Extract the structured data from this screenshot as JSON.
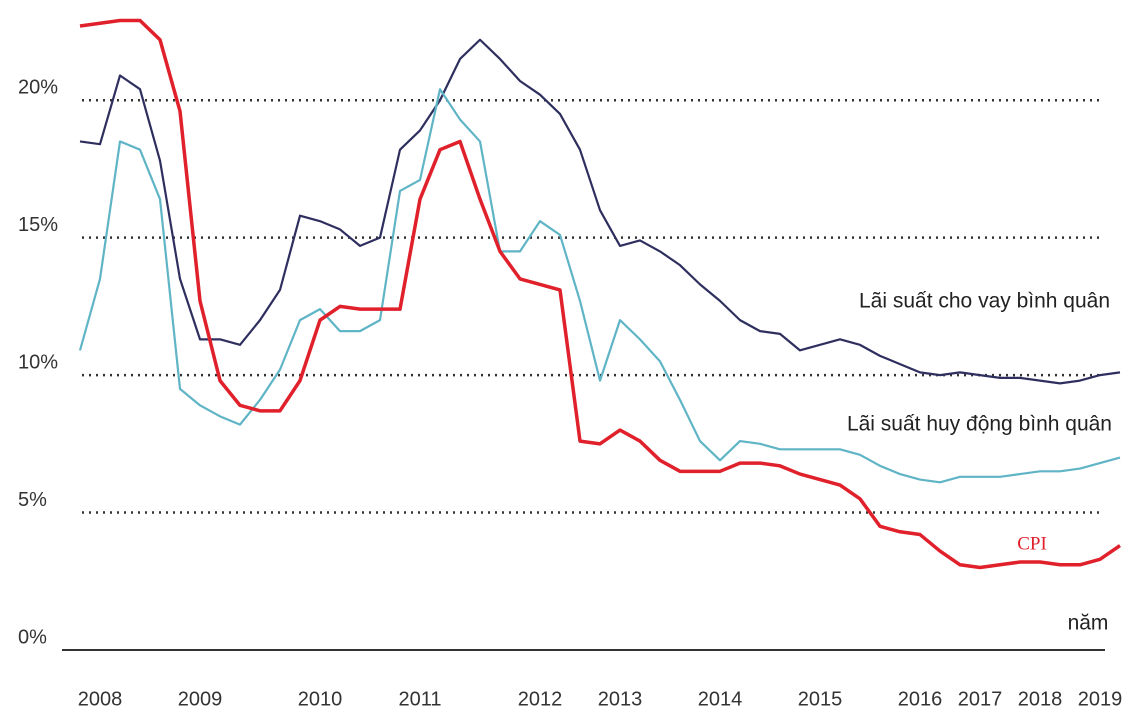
{
  "chart_data": {
    "type": "line",
    "x_label": "năm",
    "categories": [
      null,
      "2008",
      null,
      null,
      null,
      null,
      "2009",
      null,
      null,
      null,
      null,
      null,
      "2010",
      null,
      null,
      null,
      null,
      "2011",
      null,
      null,
      null,
      null,
      null,
      "2012",
      null,
      null,
      null,
      "2013",
      null,
      null,
      null,
      null,
      "2014",
      null,
      null,
      null,
      null,
      "2015",
      null,
      null,
      null,
      null,
      "2016",
      null,
      null,
      "2017",
      null,
      null,
      "2018",
      null,
      null,
      "2019",
      null
    ],
    "series": [
      {
        "name": "Lãi suất cho vay bình quân",
        "color": "#2e2f5e",
        "values": [
          18.5,
          18.4,
          20.9,
          20.4,
          17.8,
          13.5,
          11.3,
          11.3,
          11.1,
          12,
          13.1,
          15.8,
          15.6,
          15.3,
          14.7,
          15.0,
          18.2,
          18.9,
          20,
          21.5,
          22.2,
          21.5,
          20.7,
          20.2,
          19.5,
          18.2,
          16,
          14.7,
          14.9,
          14.5,
          14,
          13.3,
          12.7,
          12,
          11.6,
          11.5,
          10.9,
          11.1,
          11.3,
          11.1,
          10.7,
          10.4,
          10.1,
          10,
          10.1,
          10,
          9.9,
          9.9,
          9.8,
          9.7,
          9.8,
          10,
          10.1
        ]
      },
      {
        "name": "Lãi suất huy động bình quân",
        "color": "#5fb4c6",
        "values": [
          10.9,
          13.5,
          18.5,
          18.2,
          16.4,
          9.5,
          8.9,
          8.5,
          8.2,
          9.1,
          10.2,
          12,
          12.4,
          11.6,
          11.6,
          12,
          16.7,
          17.1,
          20.4,
          19.3,
          18.5,
          14.5,
          14.5,
          15.6,
          15.1,
          12.7,
          9.8,
          12,
          11.3,
          10.5,
          9.1,
          7.6,
          6.9,
          7.6,
          7.5,
          7.3,
          7.3,
          7.3,
          7.3,
          7.1,
          6.7,
          6.4,
          6.2,
          6.1,
          6.3,
          6.3,
          6.3,
          6.4,
          6.5,
          6.5,
          6.6,
          6.8,
          7.0
        ]
      },
      {
        "name": "CPI",
        "color": "#e0202a",
        "values": [
          22.7,
          22.8,
          22.9,
          22.9,
          22.2,
          19.6,
          12.7,
          9.8,
          8.9,
          8.7,
          8.7,
          9.8,
          12,
          12.5,
          12.4,
          12.4,
          12.4,
          16.4,
          18.2,
          18.5,
          16.4,
          14.5,
          13.5,
          13.3,
          13.1,
          7.6,
          7.5,
          8,
          7.6,
          6.9,
          6.5,
          6.5,
          6.5,
          6.8,
          6.8,
          6.7,
          6.4,
          6.2,
          6,
          5.5,
          4.5,
          4.3,
          4.2,
          3.6,
          3.1,
          3.0,
          3.1,
          3.2,
          3.2,
          3.1,
          3.1,
          3.3,
          3.8
        ]
      }
    ],
    "ylim": [
      0,
      23.5
    ],
    "yticks": [
      {
        "value": 0,
        "label": "0%"
      },
      {
        "value": 5,
        "label": "5%"
      },
      {
        "value": 10,
        "label": "10%"
      },
      {
        "value": 15,
        "label": "15%"
      },
      {
        "value": 20,
        "label": "20%"
      }
    ],
    "grid": true
  }
}
